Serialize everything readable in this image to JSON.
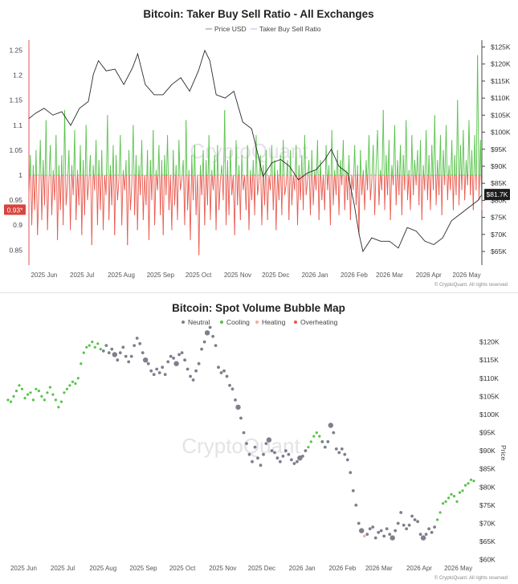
{
  "chart_data": [
    {
      "type": "line",
      "title": "Bitcoin: Taker Buy Sell Ratio - All Exchanges",
      "legend": [
        "Price USD",
        "Taker Buy Sell Ratio"
      ],
      "legend_position": "top-center",
      "x_ticks": [
        "2025 Jun",
        "2025 Jul",
        "2025 Aug",
        "2025 Sep",
        "2025 Oct",
        "2025 Nov",
        "2025 Dec",
        "2026 Jan",
        "2026 Feb",
        "2026 Mar",
        "2026 Apr",
        "2026 May"
      ],
      "y_left_ticks": [
        "1.25",
        "1.2",
        "1.15",
        "1.1",
        "1.05",
        "1",
        "0.95",
        "0.9",
        "0.85"
      ],
      "y_left_range": [
        0.82,
        1.27
      ],
      "y_right_ticks": [
        "$125K",
        "$120K",
        "$115K",
        "$110K",
        "$105K",
        "$100K",
        "$95K",
        "$90K",
        "$85K",
        "$80K",
        "$75K",
        "$70K",
        "$65K"
      ],
      "y_right_range": [
        61000,
        127000
      ],
      "ratio_baseline": 1,
      "last_ratio_label": "0.93*",
      "last_price_label": "$81.7K",
      "watermark": "CryptoQuant",
      "footer": "© CryptoQuant. All rights reserved",
      "series": [
        {
          "name": "Price USD",
          "x": [
            "2025-05-20",
            "2025-05-25",
            "2025-06-01",
            "2025-06-08",
            "2025-06-15",
            "2025-06-22",
            "2025-06-29",
            "2025-07-06",
            "2025-07-10",
            "2025-07-14",
            "2025-07-20",
            "2025-07-27",
            "2025-08-03",
            "2025-08-10",
            "2025-08-14",
            "2025-08-20",
            "2025-08-27",
            "2025-09-03",
            "2025-09-10",
            "2025-09-17",
            "2025-09-24",
            "2025-10-01",
            "2025-10-06",
            "2025-10-10",
            "2025-10-15",
            "2025-10-22",
            "2025-10-29",
            "2025-11-05",
            "2025-11-12",
            "2025-11-18",
            "2025-11-21",
            "2025-11-28",
            "2025-12-05",
            "2025-12-12",
            "2025-12-19",
            "2025-12-26",
            "2026-01-02",
            "2026-01-09",
            "2026-01-14",
            "2026-01-20",
            "2026-01-27",
            "2026-02-01",
            "2026-02-05",
            "2026-02-08",
            "2026-02-15",
            "2026-02-22",
            "2026-03-01",
            "2026-03-08",
            "2026-03-15",
            "2026-03-22",
            "2026-03-29",
            "2026-04-05",
            "2026-04-12",
            "2026-04-19",
            "2026-04-26",
            "2026-05-03",
            "2026-05-10",
            "2026-05-13"
          ],
          "values": [
            104000,
            105500,
            107000,
            105000,
            106000,
            102000,
            107000,
            109000,
            117000,
            121000,
            118000,
            118500,
            114000,
            119000,
            123000,
            114000,
            111000,
            111000,
            114000,
            116000,
            112000,
            118000,
            124000,
            121000,
            111000,
            110000,
            112000,
            103000,
            101000,
            92000,
            87000,
            91000,
            92000,
            90000,
            86000,
            88000,
            89000,
            92000,
            95000,
            90000,
            88000,
            79000,
            70000,
            65000,
            69000,
            68000,
            68000,
            66000,
            72000,
            71000,
            68000,
            67000,
            69000,
            74000,
            76000,
            78000,
            80000,
            81700
          ]
        },
        {
          "name": "Taker Buy Sell Ratio",
          "x_range": [
            "2025-05-20",
            "2026-05-13"
          ],
          "values": [
            0.96,
            1.04,
            0.9,
            1.02,
            0.93,
            1.05,
            0.88,
            0.97,
            1.07,
            0.91,
            1.03,
            0.94,
            1.11,
            0.89,
            0.99,
            1.06,
            0.92,
            1.01,
            0.95,
            1.08,
            0.87,
            1.02,
            0.93,
            1.04,
            0.9,
            1.13,
            0.94,
            0.98,
            1.05,
            0.89,
            1.02,
            0.96,
            1.09,
            0.91,
            1.01,
            0.94,
            1.06,
            0.88,
            1.03,
            0.92,
            1.1,
            0.95,
            0.99,
            1.04,
            0.86,
            1.02,
            0.97,
            1.07,
            0.9,
            1.03,
            0.93,
            1.05,
            0.89,
            1.0,
            0.96,
            1.12,
            0.91,
            1.02,
            0.94,
            1.06,
            0.88,
            1.04,
            0.95,
            0.99,
            1.08,
            0.9,
            1.01,
            0.97,
            1.03,
            0.86,
            1.05,
            0.93,
            0.98,
            1.1,
            0.92,
            1.04,
            0.89,
            1.02,
            0.96,
            1.07,
            0.91,
            1.0,
            0.94,
            1.05,
            0.87,
            1.03,
            0.95,
            1.09,
            0.9,
            1.01,
            0.97,
            1.06,
            0.92,
            1.03,
            0.88,
            1.04,
            0.96,
            1.08,
            0.93,
            1.0,
            0.89,
            1.05,
            0.94,
            1.02,
            0.91,
            1.07,
            0.97,
            0.99,
            1.03,
            0.9,
            1.11,
            0.93,
            1.01,
            0.87,
            1.04,
            0.95,
            1.06,
            0.92,
            1.0,
            0.84,
            1.02,
            0.96,
            1.05,
            0.9,
            1.03,
            0.94,
            1.08,
            0.91,
            1.01,
            0.97,
            1.04,
            0.89,
            1.06,
            0.93,
            0.99,
            1.02,
            0.95,
            1.13,
            0.9,
            1.03,
            0.92,
            1.05,
            0.96,
            1.0,
            0.88,
            1.07,
            0.94,
            1.02,
            0.91,
            1.04,
            0.97,
            1.0,
            0.93,
            1.06,
            0.89,
            1.01,
            0.95,
            1.03,
            0.92,
            1.08,
            0.96,
            0.99,
            1.04,
            0.9,
            1.02,
            0.94,
            1.05,
            0.91,
            1.0,
            0.97,
            1.06,
            0.93,
            1.03,
            0.89,
            1.01,
            0.95,
            1.04,
            0.92,
            1.07,
            0.96,
            0.98,
            1.03,
            0.91,
            1.05,
            0.94,
            1.0,
            0.97,
            1.06,
            0.9,
            1.02,
            0.95,
            1.04,
            0.93,
            1.08,
            0.96,
            0.99,
            1.03,
            0.92,
            1.05,
            0.94,
            1.01,
            0.97,
            1.07,
            0.91,
            1.03,
            0.95,
            1.0,
            0.93,
            1.06,
            0.97,
            1.02,
            0.9,
            1.09,
            0.94,
            1.01,
            0.96,
            1.05,
            0.92,
            1.03,
            0.98,
            1.07,
            0.93,
            1.01,
            0.95,
            1.04,
            0.91,
            1.0,
            0.97,
            1.06,
            0.94,
            1.02,
            0.88,
            1.05,
            0.96,
            1.01,
            0.93,
            1.03,
            0.97,
            1.08,
            0.95,
            0.99,
            1.06,
            0.92,
            1.02,
            1.09,
            0.94,
            1.01,
            0.97,
            1.13,
            0.93,
            1.04,
            0.96,
            1.07,
            0.91,
            1.02,
            0.98,
            1.1,
            0.94,
            1.03,
            0.96,
            1.06,
            0.92,
            1.04,
            0.97,
            1.11,
            0.95,
            1.01,
            0.93,
            1.08,
            0.96,
            1.03,
            0.98,
            1.05,
            0.94,
            1.07,
            0.91,
            1.02,
            0.97,
            1.09,
            0.95,
            1.04,
            0.93,
            1.06,
            0.97,
            1.12,
            0.94,
            1.03,
            0.96,
            1.08,
            0.92,
            1.05,
            0.98,
            1.1,
            0.95,
            1.02,
            0.97,
            1.07,
            0.93,
            1.04,
            0.96,
            1.15,
            0.94,
            1.06,
            0.97,
            1.09,
            0.95,
            1.03,
            0.98,
            1.11,
            0.96,
            1.05,
            0.93,
            1.08,
            0.97,
            1.24,
            0.95,
            1.07,
            0.93
          ]
        }
      ]
    },
    {
      "type": "scatter",
      "title": "Bitcoin: Spot Volume Bubble Map",
      "legend": [
        "Neutral",
        "Cooling",
        "Heating",
        "Overheating"
      ],
      "legend_position": "top-center",
      "colors": {
        "Neutral": "#7d7f8c",
        "Cooling": "#57c24a",
        "Heating": "#f5a79c",
        "Overheating": "#e9584c"
      },
      "x_ticks": [
        "2025 Jun",
        "2025 Jul",
        "2025 Aug",
        "2025 Sep",
        "2025 Oct",
        "2025 Nov",
        "2025 Dec",
        "2026 Jan",
        "2026 Feb",
        "2026 Mar",
        "2026 Apr",
        "2026 May"
      ],
      "y_ticks": [
        "$120K",
        "$115K",
        "$110K",
        "$105K",
        "$100K",
        "$95K",
        "$90K",
        "$85K",
        "$80K",
        "$75K",
        "$70K",
        "$65K",
        "$60K"
      ],
      "y_range": [
        59500,
        123000
      ],
      "ylabel": "Price",
      "watermark": "CryptoQuant",
      "footer": "© CryptoQuant. All rights reserved",
      "x_range": [
        "2025-05-20",
        "2026-05-13"
      ],
      "points_price": [
        104000,
        103500,
        105000,
        106500,
        108000,
        107000,
        104500,
        105500,
        106000,
        104000,
        107000,
        106500,
        105000,
        104000,
        106000,
        107500,
        105500,
        104000,
        102000,
        103500,
        106000,
        107000,
        108000,
        109000,
        108500,
        110000,
        114000,
        117000,
        118500,
        119000,
        120000,
        118500,
        119500,
        118000,
        117500,
        119000,
        117000,
        118000,
        116500,
        115000,
        117000,
        118500,
        116000,
        114500,
        116000,
        119000,
        121000,
        119500,
        117000,
        115000,
        114000,
        112000,
        111000,
        112500,
        111500,
        113000,
        111000,
        114500,
        116000,
        115500,
        114000,
        116500,
        117000,
        115000,
        112500,
        110500,
        109500,
        112000,
        114000,
        118000,
        120000,
        122500,
        124000,
        121500,
        119000,
        113000,
        111500,
        112000,
        110500,
        108000,
        107000,
        104000,
        102000,
        99000,
        95000,
        92000,
        89000,
        87000,
        91000,
        88000,
        86000,
        89000,
        92000,
        93000,
        90000,
        89500,
        88000,
        87000,
        88500,
        90000,
        89000,
        87500,
        86500,
        87000,
        88000,
        88500,
        90000,
        91000,
        92500,
        94000,
        95000,
        94000,
        92500,
        91000,
        92500,
        97000,
        95000,
        90500,
        89500,
        90500,
        89000,
        87500,
        84000,
        79000,
        75000,
        70000,
        68000,
        66500,
        67000,
        68500,
        69000,
        66000,
        67500,
        68000,
        66500,
        68500,
        67000,
        66000,
        68000,
        70000,
        73000,
        69500,
        68500,
        69500,
        72000,
        71000,
        70500,
        67000,
        66000,
        67000,
        68500,
        67500,
        69000,
        71000,
        73000,
        75500,
        76000,
        77000,
        78000,
        77500,
        76000,
        78500,
        79000,
        80500,
        81000,
        82000,
        81700
      ],
      "points_state": [
        "Cooling",
        "Cooling",
        "Cooling",
        "Cooling",
        "Cooling",
        "Cooling",
        "Cooling",
        "Cooling",
        "Cooling",
        "Cooling",
        "Cooling",
        "Cooling",
        "Cooling",
        "Cooling",
        "Cooling",
        "Cooling",
        "Cooling",
        "Cooling",
        "Cooling",
        "Cooling",
        "Cooling",
        "Cooling",
        "Cooling",
        "Cooling",
        "Cooling",
        "Cooling",
        "Cooling",
        "Cooling",
        "Cooling",
        "Cooling",
        "Cooling",
        "Cooling",
        "Cooling",
        "Cooling",
        "Neutral",
        "Neutral",
        "Neutral",
        "Neutral",
        "Neutral",
        "Neutral",
        "Neutral",
        "Neutral",
        "Neutral",
        "Neutral",
        "Neutral",
        "Neutral",
        "Neutral",
        "Neutral",
        "Neutral",
        "Neutral",
        "Neutral",
        "Neutral",
        "Neutral",
        "Neutral",
        "Neutral",
        "Neutral",
        "Neutral",
        "Neutral",
        "Neutral",
        "Neutral",
        "Neutral",
        "Neutral",
        "Neutral",
        "Neutral",
        "Neutral",
        "Neutral",
        "Neutral",
        "Neutral",
        "Neutral",
        "Neutral",
        "Neutral",
        "Neutral",
        "Neutral",
        "Neutral",
        "Neutral",
        "Neutral",
        "Neutral",
        "Neutral",
        "Neutral",
        "Neutral",
        "Neutral",
        "Neutral",
        "Neutral",
        "Neutral",
        "Neutral",
        "Neutral",
        "Neutral",
        "Neutral",
        "Neutral",
        "Neutral",
        "Neutral",
        "Neutral",
        "Neutral",
        "Neutral",
        "Neutral",
        "Neutral",
        "Neutral",
        "Neutral",
        "Neutral",
        "Neutral",
        "Neutral",
        "Neutral",
        "Neutral",
        "Neutral",
        "Neutral",
        "Neutral",
        "Neutral",
        "Cooling",
        "Cooling",
        "Cooling",
        "Cooling",
        "Cooling",
        "Neutral",
        "Neutral",
        "Neutral",
        "Neutral",
        "Neutral",
        "Neutral",
        "Neutral",
        "Neutral",
        "Neutral",
        "Neutral",
        "Neutral",
        "Neutral",
        "Neutral",
        "Neutral",
        "Neutral",
        "Heating",
        "Neutral",
        "Neutral",
        "Neutral",
        "Neutral",
        "Neutral",
        "Neutral",
        "Neutral",
        "Neutral",
        "Neutral",
        "Neutral",
        "Neutral",
        "Neutral",
        "Neutral",
        "Neutral",
        "Neutral",
        "Neutral",
        "Neutral",
        "Neutral",
        "Neutral",
        "Neutral",
        "Neutral",
        "Neutral",
        "Neutral",
        "Neutral",
        "Neutral",
        "Cooling",
        "Cooling",
        "Cooling",
        "Cooling",
        "Cooling",
        "Cooling",
        "Cooling",
        "Cooling",
        "Cooling",
        "Cooling",
        "Cooling",
        "Cooling",
        "Cooling",
        "Cooling",
        "Cooling",
        "Cooling",
        "Cooling",
        "Cooling"
      ]
    }
  ]
}
